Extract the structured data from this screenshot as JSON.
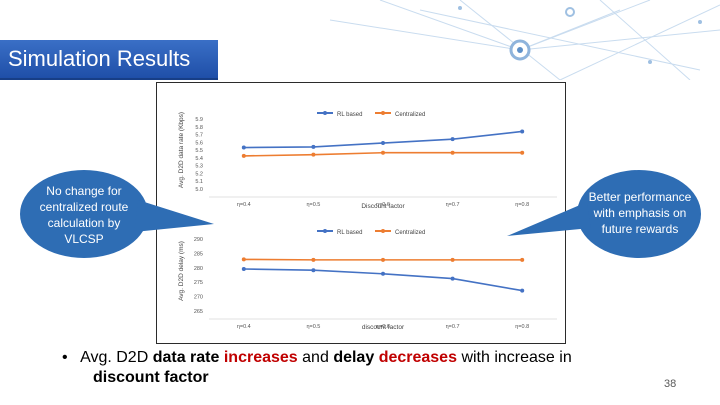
{
  "slide": {
    "title": "Simulation Results",
    "page_number": "38"
  },
  "callouts": {
    "left": [
      "No change for",
      "centralized route",
      "calculation by",
      "VLCSP"
    ],
    "right": [
      "Better performance",
      "with emphasis on",
      "future rewards"
    ]
  },
  "bullet": {
    "prefix": "Avg. D2D",
    "w1": "data rate",
    "w2": "increases",
    "w3": "and",
    "w4": "delay",
    "w5": "decreases",
    "w6": "with increase in",
    "line2": "discount factor"
  },
  "colors": {
    "title_bar": "#2a5bb8",
    "callout": "#2e6db4",
    "series_rl": "#4472c4",
    "series_central": "#ed7d31",
    "highlight": "#c00000"
  },
  "chart_data": [
    {
      "type": "line",
      "ylabel": "Avg. D2D data rate (Kbps)",
      "xlabel": "Discount factor",
      "categories": [
        "η=0.4",
        "η=0.5",
        "η=0.6",
        "η=0.7",
        "η=0.8"
      ],
      "ylim": [
        5.0,
        5.9
      ],
      "yticks": [
        "5.9",
        "5.8",
        "5.7",
        "5.6",
        "5.5",
        "5.4",
        "5.3",
        "5.2",
        "5.1",
        "5.0"
      ],
      "series": [
        {
          "name": "RL based",
          "values": [
            5.55,
            5.56,
            5.62,
            5.68,
            5.8
          ]
        },
        {
          "name": "Centralized",
          "values": [
            5.42,
            5.44,
            5.47,
            5.47,
            5.47
          ]
        }
      ],
      "legend": "top"
    },
    {
      "type": "line",
      "ylabel": "Avg. D2D delay (ms)",
      "xlabel": "discount factor",
      "categories": [
        "η=0.4",
        "η=0.5",
        "η=0.6",
        "η=0.7",
        "η=0.8"
      ],
      "ylim": [
        265,
        290
      ],
      "yticks": [
        "290",
        "285",
        "280",
        "275",
        "270",
        "265"
      ],
      "series": [
        {
          "name": "RL based",
          "values": [
            280,
            279.5,
            278,
            276,
            271
          ]
        },
        {
          "name": "Centralized",
          "values": [
            284,
            283.8,
            283.8,
            283.8,
            283.8
          ]
        }
      ],
      "legend": "top"
    }
  ]
}
